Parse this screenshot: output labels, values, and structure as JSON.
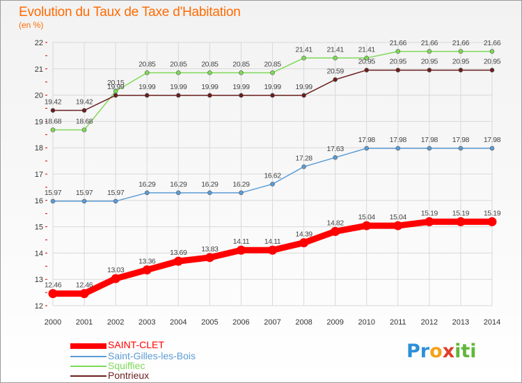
{
  "header": {
    "title": "Evolution du Taux de Taxe d'Habitation",
    "subtitle": "(en %)"
  },
  "logo": {
    "letters": [
      {
        "ch": "P",
        "color": "#2e8fd8"
      },
      {
        "ch": "r",
        "color": "#2e8fd8"
      },
      {
        "ch": "o",
        "color": "#f4a31a"
      },
      {
        "ch": "x",
        "color": "#e23d2a"
      },
      {
        "ch": "i",
        "color": "#5fb83a"
      },
      {
        "ch": "t",
        "color": "#5fb83a"
      },
      {
        "ch": "i",
        "color": "#5fb83a"
      }
    ]
  },
  "chart_data": {
    "type": "line",
    "title": "Evolution du Taux de Taxe d'Habitation",
    "subtitle": "(en %)",
    "x": [
      "2000",
      "2001",
      "2002",
      "2003",
      "2004",
      "2005",
      "2006",
      "2007",
      "2008",
      "2009",
      "2010",
      "2011",
      "2012",
      "2013",
      "2014"
    ],
    "ylim": [
      12,
      22
    ],
    "yticks": [
      "12",
      "13",
      "14",
      "15",
      "16",
      "17",
      "18",
      "19",
      "20",
      "21",
      "22"
    ],
    "grid": true,
    "legend_position": "bottom-left",
    "series": [
      {
        "name": "Squiffiec",
        "color": "#7ed957",
        "values": [
          18.68,
          18.68,
          20.15,
          20.85,
          20.85,
          20.85,
          20.85,
          20.85,
          21.41,
          21.41,
          21.41,
          21.66,
          21.66,
          21.66,
          21.66
        ],
        "labels": [
          "18.68",
          "18.68",
          "20.15",
          "20.85",
          "20.85",
          "20.85",
          "20.85",
          "20.85",
          "21.41",
          "21.41",
          "21.41",
          "21.66",
          "21.66",
          "21.66",
          "21.66"
        ]
      },
      {
        "name": "Pontrieux",
        "color": "#6b1e1e",
        "values": [
          19.42,
          19.42,
          19.99,
          19.99,
          19.99,
          19.99,
          19.99,
          19.99,
          19.99,
          20.59,
          20.95,
          20.95,
          20.95,
          20.95,
          20.95
        ],
        "labels": [
          "19.42",
          "19.42",
          "19.99",
          "19.99",
          "19.99",
          "19.99",
          "19.99",
          "19.99",
          "19.99",
          "20.59",
          "20.95",
          "20.95",
          "20.95",
          "20.95",
          "20.95"
        ]
      },
      {
        "name": "Saint-Gilles-les-Bois",
        "color": "#5b9bd5",
        "values": [
          15.97,
          15.97,
          15.97,
          16.29,
          16.29,
          16.29,
          16.29,
          16.62,
          17.28,
          17.63,
          17.98,
          17.98,
          17.98,
          17.98,
          17.98
        ],
        "labels": [
          "15.97",
          "15.97",
          "15.97",
          "16.29",
          "16.29",
          "16.29",
          "16.29",
          "16.62",
          "17.28",
          "17.63",
          "17.98",
          "17.98",
          "17.98",
          "17.98",
          "17.98"
        ]
      },
      {
        "name": "SAINT-CLET",
        "color": "#ff0000",
        "values": [
          12.46,
          12.46,
          13.03,
          13.36,
          13.69,
          13.83,
          14.11,
          14.11,
          14.39,
          14.82,
          15.04,
          15.04,
          15.19,
          15.19,
          15.19
        ],
        "labels": [
          "12.46",
          "12.46",
          "13.03",
          "13.36",
          "13.69",
          "13.83",
          "14.11",
          "14.11",
          "14.39",
          "14.82",
          "15.04",
          "15.04",
          "15.19",
          "15.19",
          "15.19"
        ]
      }
    ],
    "legend": [
      {
        "name": "SAINT-CLET",
        "color": "#ff0000"
      },
      {
        "name": "Saint-Gilles-les-Bois",
        "color": "#5b9bd5"
      },
      {
        "name": "Squiffiec",
        "color": "#7ed957"
      },
      {
        "name": "Pontrieux",
        "color": "#6b1e1e"
      }
    ]
  }
}
